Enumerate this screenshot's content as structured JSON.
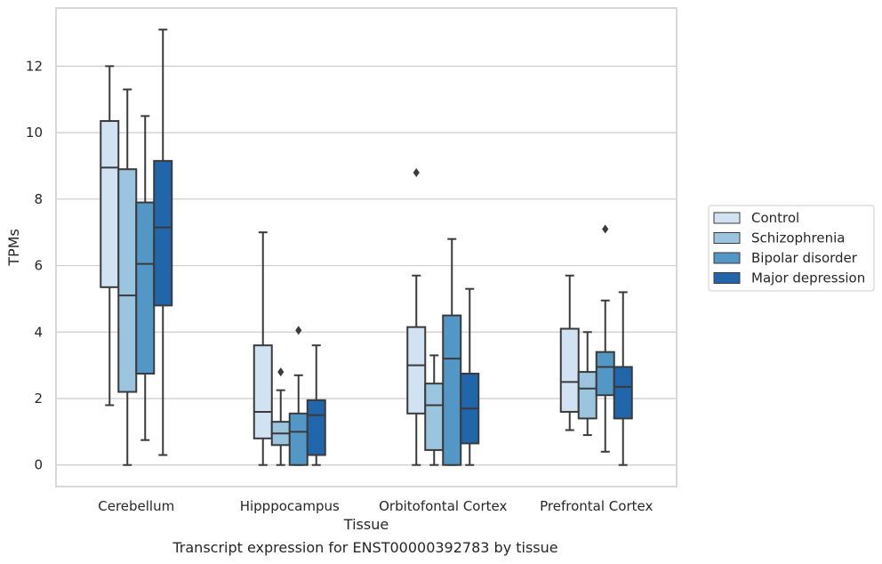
{
  "chart_data": {
    "type": "boxplot",
    "xlabel": "Tissue",
    "ylabel": "TPMs",
    "caption": "Transcript expression for ENST00000392783 by tissue",
    "ylim": [
      -0.65,
      13.75
    ],
    "yticks": [
      0,
      2,
      4,
      6,
      8,
      10,
      12
    ],
    "grid": "horizontal",
    "legend_position": "right",
    "categories": [
      "Cerebellum",
      "Hipppocampus",
      "Orbitofontal Cortex",
      "Prefrontal Cortex"
    ],
    "series": [
      {
        "name": "Control",
        "color": "#d1e2f2",
        "boxes": [
          {
            "whislo": 1.8,
            "q1": 5.35,
            "med": 8.95,
            "q3": 10.35,
            "whishi": 12.0,
            "fliers": []
          },
          {
            "whislo": 0.0,
            "q1": 0.8,
            "med": 1.6,
            "q3": 3.6,
            "whishi": 7.0,
            "fliers": []
          },
          {
            "whislo": 0.0,
            "q1": 1.55,
            "med": 3.0,
            "q3": 4.15,
            "whishi": 5.7,
            "fliers": [
              8.8
            ]
          },
          {
            "whislo": 1.05,
            "q1": 1.6,
            "med": 2.5,
            "q3": 4.1,
            "whishi": 5.7,
            "fliers": []
          }
        ]
      },
      {
        "name": "Schizophrenia",
        "color": "#9bc5de",
        "boxes": [
          {
            "whislo": 0.0,
            "q1": 2.2,
            "med": 5.1,
            "q3": 8.9,
            "whishi": 11.3,
            "fliers": []
          },
          {
            "whislo": 0.0,
            "q1": 0.6,
            "med": 0.95,
            "q3": 1.3,
            "whishi": 2.25,
            "fliers": [
              2.8
            ]
          },
          {
            "whislo": 0.0,
            "q1": 0.45,
            "med": 1.8,
            "q3": 2.45,
            "whishi": 3.3,
            "fliers": []
          },
          {
            "whislo": 0.9,
            "q1": 1.4,
            "med": 2.3,
            "q3": 2.8,
            "whishi": 4.0,
            "fliers": []
          }
        ]
      },
      {
        "name": "Bipolar disorder",
        "color": "#5397c6",
        "boxes": [
          {
            "whislo": 0.75,
            "q1": 2.75,
            "med": 6.05,
            "q3": 7.9,
            "whishi": 10.5,
            "fliers": []
          },
          {
            "whislo": 0.0,
            "q1": 0.0,
            "med": 1.0,
            "q3": 1.55,
            "whishi": 2.7,
            "fliers": [
              4.05
            ]
          },
          {
            "whislo": 0.0,
            "q1": 0.0,
            "med": 3.2,
            "q3": 4.5,
            "whishi": 6.8,
            "fliers": []
          },
          {
            "whislo": 0.4,
            "q1": 2.1,
            "med": 2.95,
            "q3": 3.4,
            "whishi": 4.95,
            "fliers": [
              7.1
            ]
          }
        ]
      },
      {
        "name": "Major depression",
        "color": "#2166ab",
        "boxes": [
          {
            "whislo": 0.3,
            "q1": 4.8,
            "med": 7.15,
            "q3": 9.15,
            "whishi": 13.1,
            "fliers": []
          },
          {
            "whislo": 0.0,
            "q1": 0.3,
            "med": 1.5,
            "q3": 1.95,
            "whishi": 3.6,
            "fliers": []
          },
          {
            "whislo": 0.0,
            "q1": 0.65,
            "med": 1.7,
            "q3": 2.75,
            "whishi": 5.3,
            "fliers": []
          },
          {
            "whislo": 0.0,
            "q1": 1.4,
            "med": 2.35,
            "q3": 2.95,
            "whishi": 5.2,
            "fliers": []
          }
        ]
      }
    ]
  }
}
